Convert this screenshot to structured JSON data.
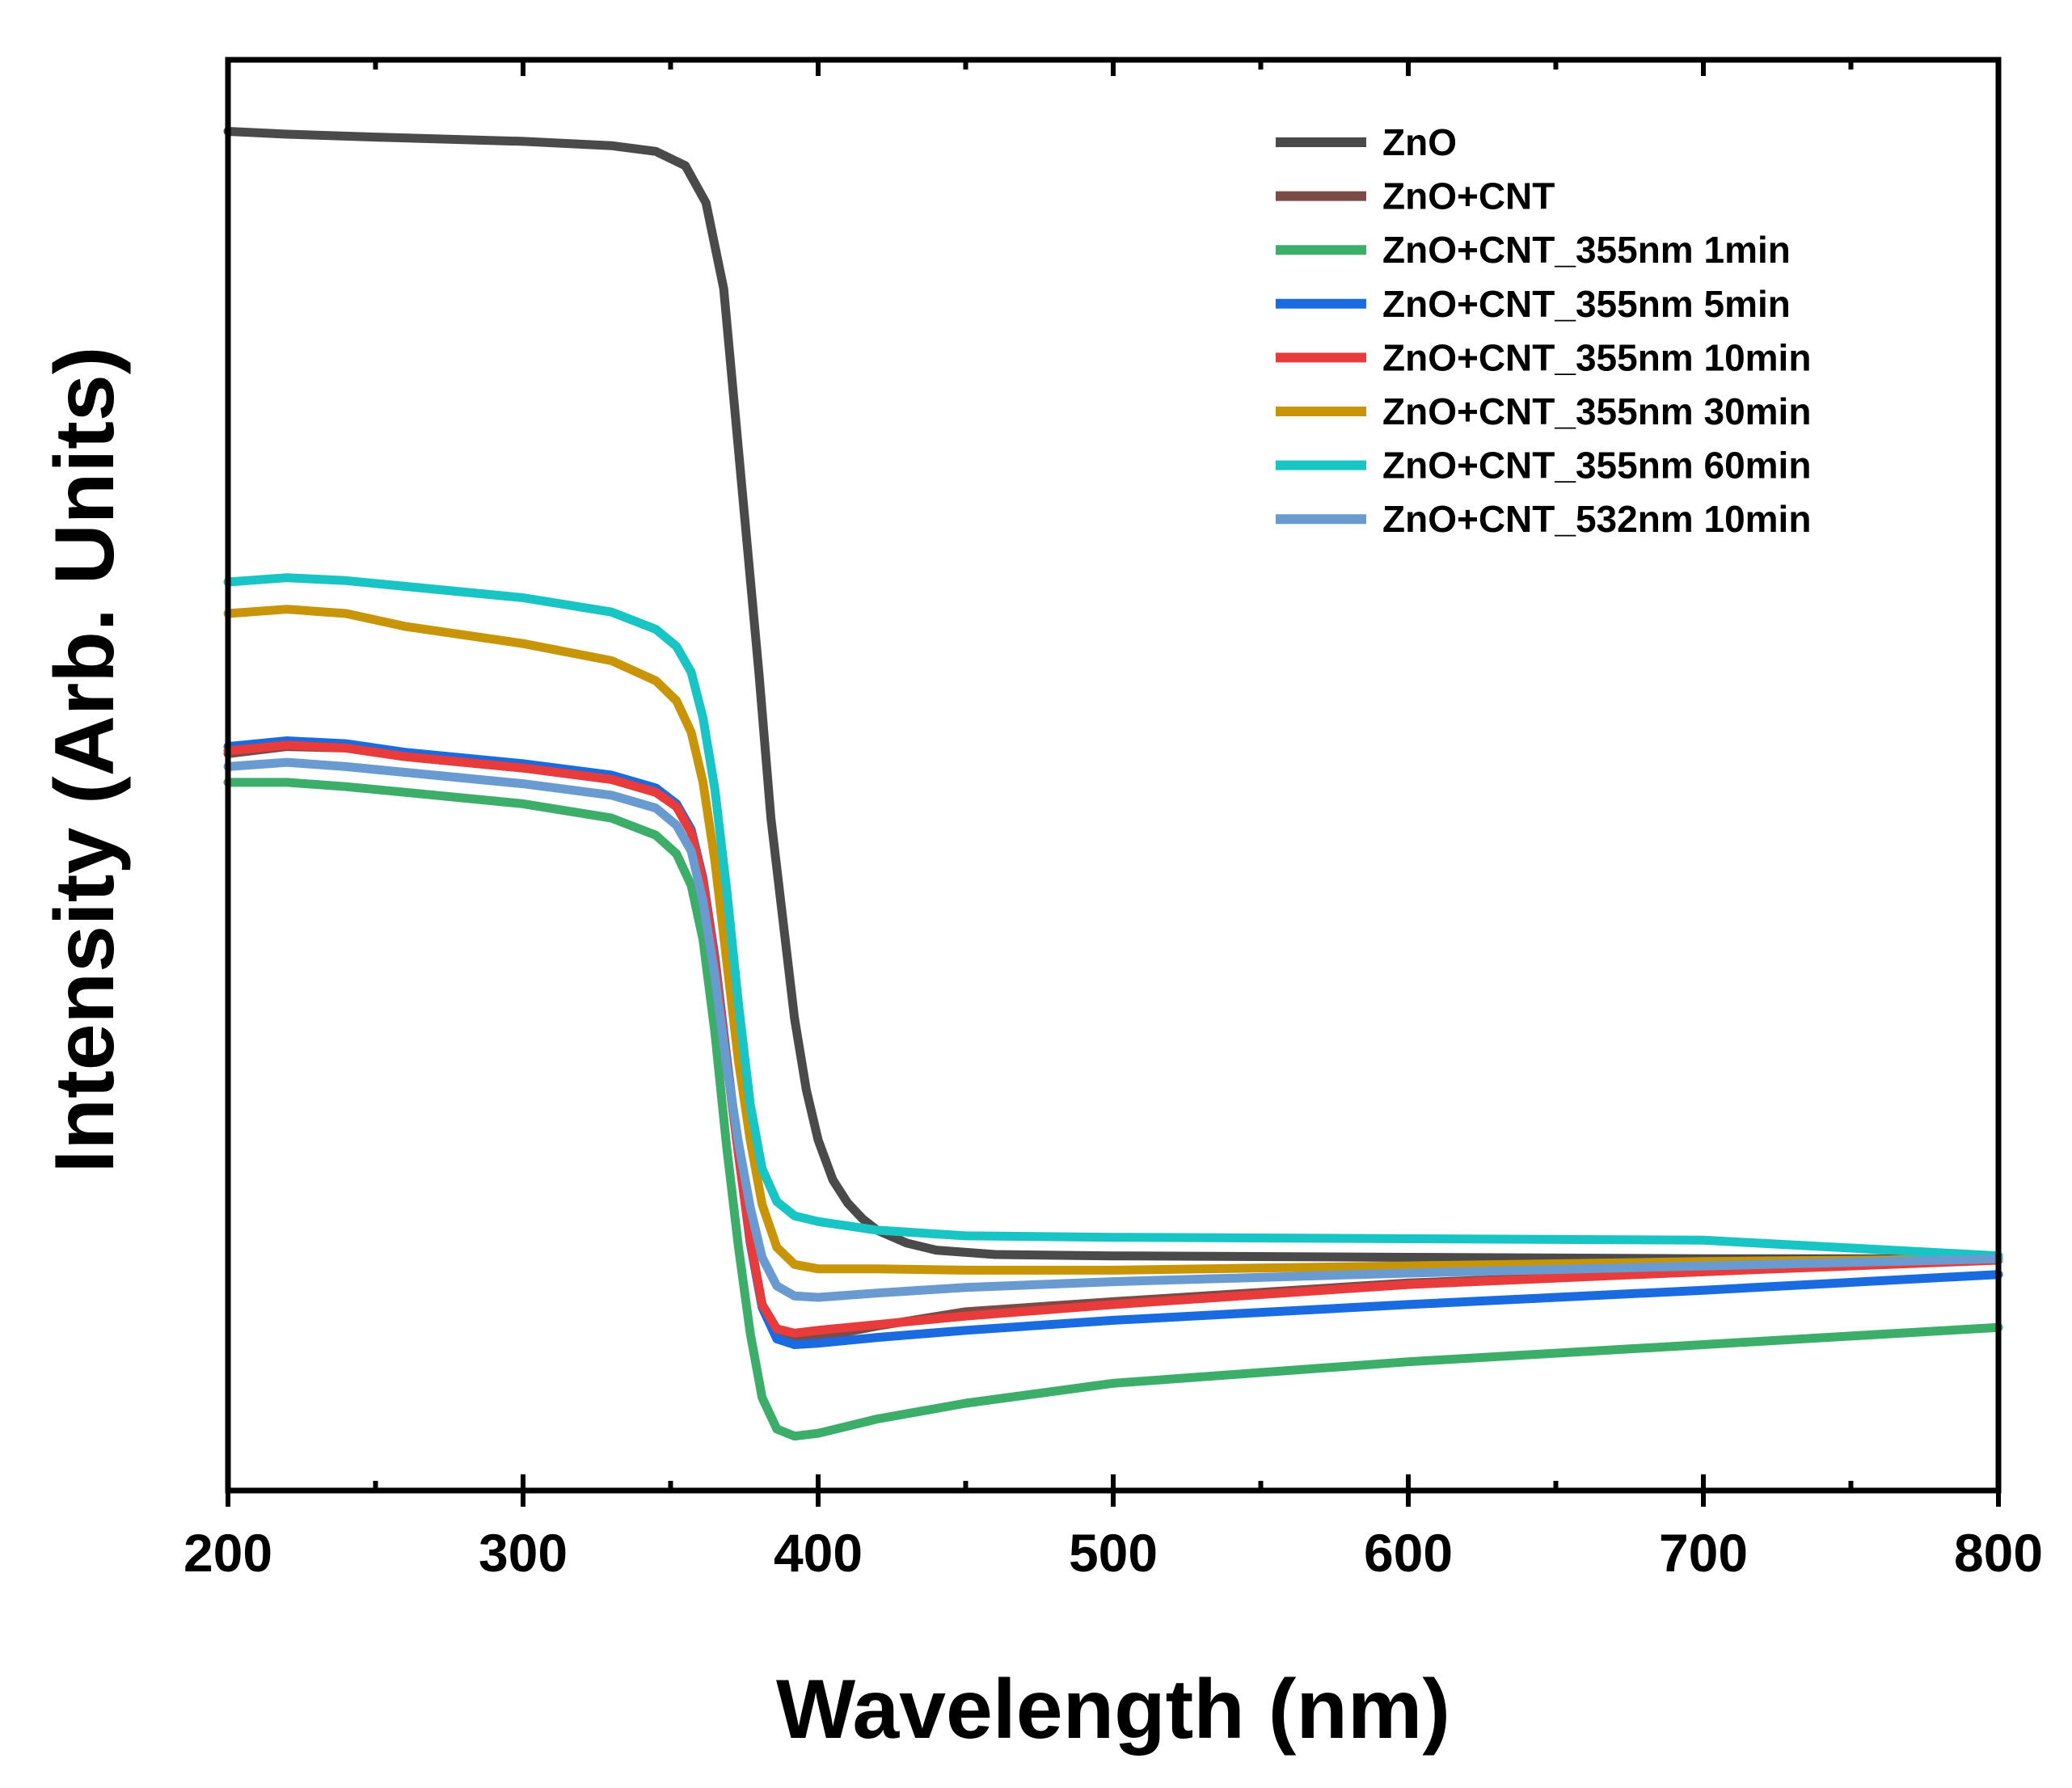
{
  "chart_data": {
    "type": "line",
    "title": "",
    "xlabel": "Wavelength (nm)",
    "ylabel": "Intensity (Arb. Units)",
    "xlim": [
      200,
      800
    ],
    "ylim": [
      0,
      100
    ],
    "x_ticks": [
      "200",
      "300",
      "400",
      "500",
      "600",
      "700",
      "800"
    ],
    "y_ticks_visible": false,
    "grid": false,
    "legend_position": "top-right",
    "series": [
      {
        "name": "ZnO",
        "color": "#4a4a4a",
        "points": [
          [
            200,
            95
          ],
          [
            220,
            94.8
          ],
          [
            250,
            94.6
          ],
          [
            300,
            94.3
          ],
          [
            330,
            94
          ],
          [
            345,
            93.6
          ],
          [
            355,
            92.6
          ],
          [
            362,
            90
          ],
          [
            368,
            84
          ],
          [
            372,
            75
          ],
          [
            376,
            66
          ],
          [
            380,
            57
          ],
          [
            384,
            47
          ],
          [
            388,
            40
          ],
          [
            392,
            33
          ],
          [
            396,
            28
          ],
          [
            400,
            24.5
          ],
          [
            405,
            21.7
          ],
          [
            410,
            20.1
          ],
          [
            415,
            19
          ],
          [
            420,
            18.2
          ],
          [
            430,
            17.3
          ],
          [
            440,
            16.8
          ],
          [
            460,
            16.5
          ],
          [
            500,
            16.4
          ],
          [
            600,
            16.3
          ],
          [
            700,
            16.2
          ],
          [
            800,
            16.2
          ]
        ]
      },
      {
        "name": "ZnO+CNT",
        "color": "#7a4b47",
        "points": [
          [
            200,
            51.5
          ],
          [
            220,
            52
          ],
          [
            240,
            51.9
          ],
          [
            260,
            51.3
          ],
          [
            300,
            50.5
          ],
          [
            330,
            49.7
          ],
          [
            345,
            48.8
          ],
          [
            352,
            47.8
          ],
          [
            357,
            46
          ],
          [
            361,
            42.5
          ],
          [
            365,
            37
          ],
          [
            369,
            30
          ],
          [
            373,
            23.5
          ],
          [
            377,
            17.5
          ],
          [
            381,
            13
          ],
          [
            386,
            10.8
          ],
          [
            392,
            10.6
          ],
          [
            400,
            10.7
          ],
          [
            420,
            11.5
          ],
          [
            450,
            12.5
          ],
          [
            500,
            13.2
          ],
          [
            600,
            14.5
          ],
          [
            700,
            15.3
          ],
          [
            800,
            16.2
          ]
        ]
      },
      {
        "name": "ZnO+CNT_355nm 1min",
        "color": "#3cae69",
        "points": [
          [
            200,
            49.5
          ],
          [
            220,
            49.5
          ],
          [
            240,
            49.2
          ],
          [
            260,
            48.8
          ],
          [
            300,
            48
          ],
          [
            330,
            47
          ],
          [
            345,
            45.8
          ],
          [
            352,
            44.5
          ],
          [
            357,
            42.3
          ],
          [
            361,
            38.5
          ],
          [
            365,
            32
          ],
          [
            369,
            24
          ],
          [
            373,
            17
          ],
          [
            377,
            11
          ],
          [
            381,
            6.5
          ],
          [
            386,
            4.3
          ],
          [
            392,
            3.8
          ],
          [
            400,
            4
          ],
          [
            420,
            5
          ],
          [
            450,
            6.1
          ],
          [
            500,
            7.5
          ],
          [
            600,
            9
          ],
          [
            700,
            10.2
          ],
          [
            800,
            11.4
          ]
        ]
      },
      {
        "name": "ZnO+CNT_355nm 5min",
        "color": "#1a6be0",
        "points": [
          [
            200,
            52
          ],
          [
            220,
            52.4
          ],
          [
            240,
            52.2
          ],
          [
            260,
            51.6
          ],
          [
            300,
            50.8
          ],
          [
            330,
            50
          ],
          [
            345,
            49.1
          ],
          [
            352,
            48
          ],
          [
            357,
            46.2
          ],
          [
            361,
            42.8
          ],
          [
            365,
            37.3
          ],
          [
            369,
            30.3
          ],
          [
            373,
            23.6
          ],
          [
            377,
            17.3
          ],
          [
            381,
            12.8
          ],
          [
            386,
            10.6
          ],
          [
            392,
            10.2
          ],
          [
            400,
            10.3
          ],
          [
            420,
            10.7
          ],
          [
            450,
            11.2
          ],
          [
            500,
            11.9
          ],
          [
            600,
            13
          ],
          [
            700,
            14
          ],
          [
            800,
            15.1
          ]
        ]
      },
      {
        "name": "ZnO+CNT_355nm 10min",
        "color": "#e83b3c",
        "points": [
          [
            200,
            51.7
          ],
          [
            220,
            52.1
          ],
          [
            240,
            51.9
          ],
          [
            260,
            51.3
          ],
          [
            300,
            50.5
          ],
          [
            330,
            49.7
          ],
          [
            345,
            48.8
          ],
          [
            352,
            47.8
          ],
          [
            357,
            46
          ],
          [
            361,
            42.6
          ],
          [
            365,
            37
          ],
          [
            369,
            30
          ],
          [
            373,
            23.5
          ],
          [
            377,
            17.5
          ],
          [
            381,
            13
          ],
          [
            386,
            11.3
          ],
          [
            392,
            11
          ],
          [
            400,
            11.2
          ],
          [
            420,
            11.6
          ],
          [
            450,
            12.2
          ],
          [
            500,
            13
          ],
          [
            600,
            14.4
          ],
          [
            700,
            15.3
          ],
          [
            800,
            16.1
          ]
        ]
      },
      {
        "name": "ZnO+CNT_355nm 30min",
        "color": "#c99508",
        "points": [
          [
            200,
            61.3
          ],
          [
            220,
            61.6
          ],
          [
            240,
            61.3
          ],
          [
            260,
            60.4
          ],
          [
            300,
            59.2
          ],
          [
            330,
            58
          ],
          [
            345,
            56.6
          ],
          [
            352,
            55.2
          ],
          [
            357,
            53
          ],
          [
            361,
            49.5
          ],
          [
            365,
            44
          ],
          [
            369,
            37
          ],
          [
            373,
            30
          ],
          [
            377,
            24.5
          ],
          [
            381,
            20
          ],
          [
            386,
            17
          ],
          [
            392,
            15.8
          ],
          [
            400,
            15.5
          ],
          [
            420,
            15.5
          ],
          [
            450,
            15.4
          ],
          [
            500,
            15.4
          ],
          [
            600,
            15.7
          ],
          [
            700,
            16
          ],
          [
            800,
            16.2
          ]
        ]
      },
      {
        "name": "ZnO+CNT_355nm 60min",
        "color": "#19c4c4",
        "points": [
          [
            200,
            63.5
          ],
          [
            220,
            63.8
          ],
          [
            240,
            63.6
          ],
          [
            260,
            63.2
          ],
          [
            300,
            62.4
          ],
          [
            330,
            61.4
          ],
          [
            345,
            60.2
          ],
          [
            352,
            59
          ],
          [
            357,
            57.2
          ],
          [
            361,
            54
          ],
          [
            365,
            49
          ],
          [
            369,
            42
          ],
          [
            373,
            34
          ],
          [
            377,
            27
          ],
          [
            381,
            22.5
          ],
          [
            386,
            20.2
          ],
          [
            392,
            19.2
          ],
          [
            400,
            18.8
          ],
          [
            420,
            18.2
          ],
          [
            450,
            17.8
          ],
          [
            500,
            17.7
          ],
          [
            600,
            17.6
          ],
          [
            700,
            17.5
          ],
          [
            800,
            16.4
          ]
        ]
      },
      {
        "name": "ZnO+CNT_532nm 10min",
        "color": "#6a9bd0",
        "points": [
          [
            200,
            50.6
          ],
          [
            220,
            50.9
          ],
          [
            240,
            50.6
          ],
          [
            260,
            50.2
          ],
          [
            300,
            49.4
          ],
          [
            330,
            48.6
          ],
          [
            345,
            47.7
          ],
          [
            352,
            46.5
          ],
          [
            357,
            44.7
          ],
          [
            361,
            41.2
          ],
          [
            365,
            36
          ],
          [
            369,
            29.7
          ],
          [
            373,
            24.3
          ],
          [
            377,
            19.8
          ],
          [
            381,
            16.3
          ],
          [
            386,
            14.3
          ],
          [
            392,
            13.6
          ],
          [
            400,
            13.5
          ],
          [
            420,
            13.8
          ],
          [
            450,
            14.2
          ],
          [
            500,
            14.6
          ],
          [
            600,
            15.2
          ],
          [
            700,
            15.7
          ],
          [
            800,
            16.2
          ]
        ]
      }
    ]
  }
}
